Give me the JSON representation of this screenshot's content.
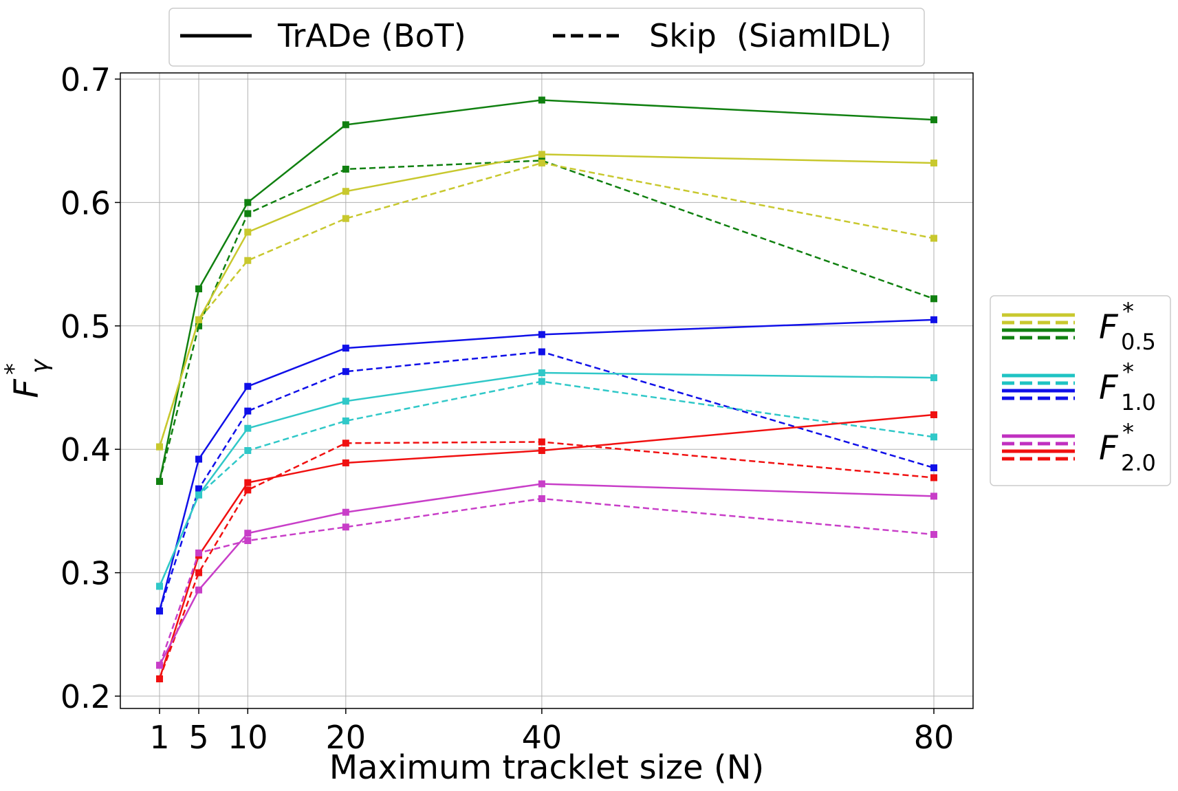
{
  "chart_data": {
    "type": "line",
    "xlabel": "Maximum tracklet size (N)",
    "ylabel": {
      "base": "F",
      "sup": "*",
      "sub": "γ"
    },
    "x": [
      1,
      5,
      10,
      20,
      40,
      80
    ],
    "xticks": [
      "1",
      "5",
      "10",
      "20",
      "40",
      "80"
    ],
    "yticks": [
      "0.2",
      "0.3",
      "0.4",
      "0.5",
      "0.6",
      "0.7"
    ],
    "ylim": [
      0.19,
      0.705
    ],
    "xlim": [
      -3,
      84
    ],
    "grid": true,
    "legend_top": {
      "placement": "top-center",
      "entries": [
        {
          "label": "TrADe (BoT)",
          "style": "solid"
        },
        {
          "label": "Skip  (SiamIDL)",
          "style": "dashed"
        }
      ]
    },
    "legend_right": {
      "placement": "center-right",
      "entries": [
        {
          "base": "F",
          "sup": "*",
          "sub": "0.5",
          "colors": [
            "#c8c82e",
            "#108010"
          ]
        },
        {
          "base": "F",
          "sup": "*",
          "sub": "1.0",
          "colors": [
            "#1fc3c3",
            "#1010e8"
          ]
        },
        {
          "base": "F",
          "sup": "*",
          "sub": "2.0",
          "colors": [
            "#c030c0",
            "#f01010"
          ]
        }
      ]
    },
    "series": [
      {
        "color": "#108010",
        "style": "solid",
        "values": [
          0.374,
          0.53,
          0.6,
          0.663,
          0.683,
          0.667
        ]
      },
      {
        "color": "#108010",
        "style": "dashed",
        "values": [
          0.374,
          0.5,
          0.591,
          0.627,
          0.634,
          0.522
        ]
      },
      {
        "color": "#c8c82e",
        "style": "solid",
        "values": [
          0.402,
          0.505,
          0.576,
          0.609,
          0.639,
          0.632
        ]
      },
      {
        "color": "#c8c82e",
        "style": "dashed",
        "values": [
          0.402,
          0.505,
          0.553,
          0.587,
          0.632,
          0.571
        ]
      },
      {
        "color": "#1010e8",
        "style": "solid",
        "values": [
          0.269,
          0.392,
          0.451,
          0.482,
          0.493,
          0.505
        ]
      },
      {
        "color": "#1010e8",
        "style": "dashed",
        "values": [
          0.269,
          0.368,
          0.431,
          0.463,
          0.479,
          0.385
        ]
      },
      {
        "color": "#30c8c8",
        "style": "solid",
        "values": [
          0.289,
          0.363,
          0.417,
          0.439,
          0.462,
          0.458
        ]
      },
      {
        "color": "#30c8c8",
        "style": "dashed",
        "values": [
          0.289,
          0.363,
          0.399,
          0.423,
          0.455,
          0.41
        ]
      },
      {
        "color": "#f01010",
        "style": "solid",
        "values": [
          0.214,
          0.314,
          0.373,
          0.389,
          0.399,
          0.428
        ]
      },
      {
        "color": "#f01010",
        "style": "dashed",
        "values": [
          0.214,
          0.3,
          0.367,
          0.405,
          0.406,
          0.377
        ]
      },
      {
        "color": "#c83ec8",
        "style": "solid",
        "values": [
          0.225,
          0.286,
          0.332,
          0.349,
          0.372,
          0.362
        ]
      },
      {
        "color": "#c83ec8",
        "style": "dashed",
        "values": [
          0.225,
          0.316,
          0.326,
          0.337,
          0.36,
          0.331
        ]
      }
    ]
  }
}
